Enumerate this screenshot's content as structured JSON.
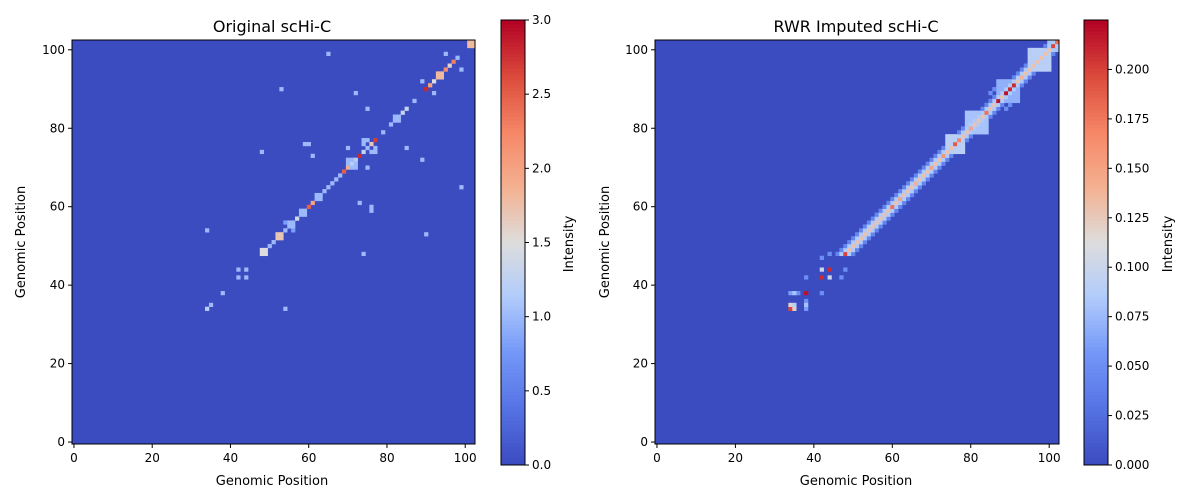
{
  "chart_data": [
    {
      "type": "heatmap",
      "title": "Original scHi-C",
      "xlabel": "Genomic Position",
      "ylabel": "Genomic Position",
      "xlim": [
        0,
        102
      ],
      "ylim": [
        0,
        102
      ],
      "xticks": [
        0,
        20,
        40,
        60,
        80,
        100
      ],
      "yticks": [
        0,
        20,
        40,
        60,
        80,
        100
      ],
      "colorbar": {
        "label": "Intensity",
        "min": 0.0,
        "max": 3.0,
        "ticks": [
          "0.0",
          "0.5",
          "1.0",
          "1.5",
          "2.0",
          "2.5",
          "3.0"
        ]
      },
      "colormap": "coolwarm",
      "grid": false,
      "cells": [
        [
          34,
          34,
          1.2
        ],
        [
          35,
          35,
          1.0
        ],
        [
          38,
          38,
          1.0
        ],
        [
          34,
          54,
          1.0
        ],
        [
          54,
          34,
          1.0
        ],
        [
          42,
          42,
          1.0
        ],
        [
          42,
          44,
          1.0
        ],
        [
          44,
          42,
          1.0
        ],
        [
          44,
          44,
          1.0
        ],
        [
          48,
          48,
          1.5
        ],
        [
          48,
          49,
          1.5
        ],
        [
          49,
          48,
          1.5
        ],
        [
          49,
          49,
          1.5
        ],
        [
          50,
          50,
          1.0
        ],
        [
          51,
          51,
          1.0
        ],
        [
          52,
          52,
          1.7
        ],
        [
          53,
          53,
          1.7
        ],
        [
          52,
          53,
          1.7
        ],
        [
          53,
          52,
          1.7
        ],
        [
          54,
          54,
          1.0
        ],
        [
          55,
          55,
          1.0
        ],
        [
          56,
          56,
          1.0
        ],
        [
          57,
          57,
          1.4
        ],
        [
          55,
          56,
          1.0
        ],
        [
          56,
          55,
          1.0
        ],
        [
          54,
          56,
          0.8
        ],
        [
          56,
          54,
          0.8
        ],
        [
          58,
          58,
          1.0
        ],
        [
          59,
          59,
          1.0
        ],
        [
          58,
          59,
          1.0
        ],
        [
          59,
          58,
          1.0
        ],
        [
          60,
          60,
          2.5
        ],
        [
          61,
          61,
          2.0
        ],
        [
          62,
          62,
          1.0
        ],
        [
          63,
          63,
          1.0
        ],
        [
          62,
          63,
          1.0
        ],
        [
          63,
          62,
          1.0
        ],
        [
          64,
          64,
          1.0
        ],
        [
          65,
          65,
          1.0
        ],
        [
          66,
          66,
          1.0
        ],
        [
          67,
          67,
          1.0
        ],
        [
          68,
          68,
          1.0
        ],
        [
          69,
          69,
          2.5
        ],
        [
          70,
          70,
          1.9
        ],
        [
          71,
          71,
          1.2
        ],
        [
          72,
          72,
          1.2
        ],
        [
          73,
          73,
          2.8
        ],
        [
          74,
          74,
          1.3
        ],
        [
          75,
          75,
          1.0
        ],
        [
          76,
          76,
          1.7
        ],
        [
          77,
          77,
          2.7
        ],
        [
          70,
          71,
          1.0
        ],
        [
          71,
          70,
          1.0
        ],
        [
          71,
          72,
          1.0
        ],
        [
          72,
          71,
          1.0
        ],
        [
          70,
          72,
          1.0
        ],
        [
          72,
          70,
          1.0
        ],
        [
          74,
          76,
          1.0
        ],
        [
          76,
          74,
          1.0
        ],
        [
          74,
          77,
          1.0
        ],
        [
          77,
          74,
          1.0
        ],
        [
          75,
          77,
          1.0
        ],
        [
          77,
          75,
          1.0
        ],
        [
          79,
          79,
          1.0
        ],
        [
          81,
          81,
          1.0
        ],
        [
          82,
          82,
          1.0
        ],
        [
          83,
          83,
          1.0
        ],
        [
          82,
          83,
          1.0
        ],
        [
          83,
          82,
          1.0
        ],
        [
          84,
          84,
          1.3
        ],
        [
          85,
          85,
          1.3
        ],
        [
          87,
          87,
          1.0
        ],
        [
          90,
          90,
          2.8
        ],
        [
          91,
          91,
          2.0
        ],
        [
          92,
          92,
          1.5
        ],
        [
          93,
          93,
          1.8
        ],
        [
          94,
          94,
          1.8
        ],
        [
          93,
          94,
          1.8
        ],
        [
          94,
          93,
          1.8
        ],
        [
          95,
          95,
          2.2
        ],
        [
          96,
          96,
          1.6
        ],
        [
          97,
          97,
          2.3
        ],
        [
          98,
          98,
          1.0
        ],
        [
          101,
          101,
          1.8
        ],
        [
          102,
          102,
          1.8
        ],
        [
          101,
          102,
          1.8
        ],
        [
          102,
          101,
          1.8
        ],
        [
          53,
          90,
          1.0
        ],
        [
          90,
          53,
          1.0
        ],
        [
          72,
          89,
          1.0
        ],
        [
          89,
          72,
          1.0
        ],
        [
          75,
          85,
          1.0
        ],
        [
          85,
          75,
          1.0
        ],
        [
          60,
          76,
          1.0
        ],
        [
          76,
          60,
          1.0
        ],
        [
          61,
          73,
          1.0
        ],
        [
          73,
          61,
          1.0
        ],
        [
          48,
          74,
          1.0
        ],
        [
          74,
          48,
          1.0
        ],
        [
          65,
          99,
          1.0
        ],
        [
          99,
          65,
          1.0
        ],
        [
          75,
          70,
          1.0
        ],
        [
          70,
          75,
          1.0
        ],
        [
          59,
          76,
          1.0
        ],
        [
          76,
          59,
          1.0
        ],
        [
          95,
          99,
          1.0
        ],
        [
          99,
          95,
          1.0
        ],
        [
          92,
          89,
          1.0
        ],
        [
          89,
          92,
          1.0
        ]
      ]
    },
    {
      "type": "heatmap",
      "title": "RWR Imputed scHi-C",
      "xlabel": "Genomic Position",
      "ylabel": "Genomic Position",
      "xlim": [
        0,
        102
      ],
      "ylim": [
        0,
        102
      ],
      "xticks": [
        0,
        20,
        40,
        60,
        80,
        100
      ],
      "yticks": [
        0,
        20,
        40,
        60,
        80,
        100
      ],
      "colorbar": {
        "label": "Intensity",
        "min": 0.0,
        "max": 0.225,
        "ticks": [
          "0.000",
          "0.025",
          "0.050",
          "0.075",
          "0.100",
          "0.125",
          "0.150",
          "0.175",
          "0.200"
        ]
      },
      "colormap": "coolwarm",
      "grid": false,
      "diagonal_band": {
        "start": 48,
        "end": 102,
        "width": 2,
        "center_value": 0.13,
        "off_value": 0.06
      },
      "cells": [
        [
          34,
          34,
          0.2
        ],
        [
          35,
          34,
          0.12
        ],
        [
          34,
          35,
          0.12
        ],
        [
          35,
          35,
          0.09
        ],
        [
          34,
          38,
          0.06
        ],
        [
          38,
          34,
          0.06
        ],
        [
          36,
          38,
          0.05
        ],
        [
          38,
          36,
          0.05
        ],
        [
          38,
          38,
          0.22
        ],
        [
          38,
          35,
          0.08
        ],
        [
          35,
          38,
          0.08
        ],
        [
          38,
          42,
          0.05
        ],
        [
          42,
          38,
          0.05
        ],
        [
          42,
          42,
          0.21
        ],
        [
          44,
          44,
          0.21
        ],
        [
          42,
          44,
          0.1
        ],
        [
          44,
          42,
          0.1
        ],
        [
          44,
          48,
          0.05
        ],
        [
          48,
          44,
          0.05
        ],
        [
          42,
          47,
          0.05
        ],
        [
          47,
          42,
          0.05
        ],
        [
          48,
          48,
          0.2
        ],
        [
          54,
          54,
          0.02
        ],
        [
          55,
          55,
          0.03
        ],
        [
          60,
          60,
          0.18
        ],
        [
          62,
          62,
          0.15
        ],
        [
          64,
          64,
          0.02
        ],
        [
          66,
          66,
          0.14
        ],
        [
          70,
          70,
          0.15
        ],
        [
          73,
          73,
          0.16
        ],
        [
          76,
          76,
          0.19
        ],
        [
          77,
          77,
          0.17
        ],
        [
          80,
          80,
          0.15
        ],
        [
          84,
          84,
          0.18
        ],
        [
          87,
          87,
          0.22
        ],
        [
          89,
          89,
          0.22
        ],
        [
          90,
          90,
          0.21
        ],
        [
          91,
          91,
          0.21
        ],
        [
          93,
          93,
          0.14
        ],
        [
          101,
          101,
          0.2
        ],
        [
          102,
          102,
          0.18
        ],
        [
          85,
          89,
          0.05
        ],
        [
          89,
          85,
          0.05
        ],
        [
          86,
          90,
          0.05
        ],
        [
          90,
          86,
          0.05
        ],
        [
          87,
          90,
          0.06
        ],
        [
          90,
          87,
          0.06
        ],
        [
          88,
          90,
          0.05
        ],
        [
          90,
          88,
          0.05
        ]
      ],
      "blocks": [
        [
          74,
          78,
          0.09
        ],
        [
          79,
          84,
          0.08
        ],
        [
          87,
          92,
          0.07
        ],
        [
          95,
          100,
          0.09
        ],
        [
          100,
          102,
          0.08
        ]
      ]
    }
  ]
}
